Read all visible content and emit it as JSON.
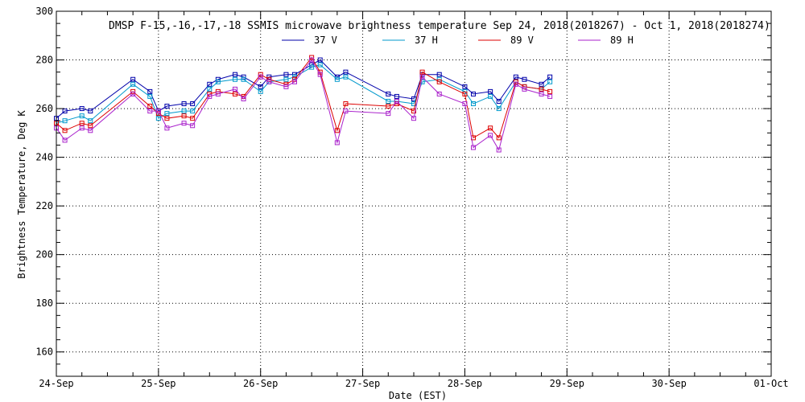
{
  "chart_data": {
    "type": "line",
    "title": "DMSP F-15,-16,-17,-18 SSMIS microwave brightness temperature Sep 24, 2018(2018267) - Oct  1, 2018(2018274)",
    "xlabel": "Date (EST)",
    "ylabel": "Brightness Temperature, Deg K",
    "xlim": [
      "2018-09-24T00:00",
      "2018-10-01T00:00"
    ],
    "ylim": [
      150,
      300
    ],
    "grid": true,
    "legend": "top-center",
    "x_tick_labels": [
      "24-Sep",
      "25-Sep",
      "26-Sep",
      "27-Sep",
      "28-Sep",
      "29-Sep",
      "30-Sep",
      "01-Oct"
    ],
    "y_tick_labels": [
      "160",
      "180",
      "200",
      "220",
      "240",
      "260",
      "280",
      "300"
    ],
    "x": [
      "2018-09-24T00:00",
      "2018-09-24T02:00",
      "2018-09-24T06:00",
      "2018-09-24T08:00",
      "2018-09-24T18:00",
      "2018-09-24T22:00",
      "2018-09-25T00:00",
      "2018-09-25T02:00",
      "2018-09-25T06:00",
      "2018-09-25T08:00",
      "2018-09-25T12:00",
      "2018-09-25T14:00",
      "2018-09-25T18:00",
      "2018-09-25T20:00",
      "2018-09-26T00:00",
      "2018-09-26T02:00",
      "2018-09-26T06:00",
      "2018-09-26T08:00",
      "2018-09-26T12:00",
      "2018-09-26T14:00",
      "2018-09-26T18:00",
      "2018-09-26T20:00",
      "2018-09-27T06:00",
      "2018-09-27T08:00",
      "2018-09-27T12:00",
      "2018-09-27T14:00",
      "2018-09-27T18:00",
      "2018-09-28T00:00",
      "2018-09-28T02:00",
      "2018-09-28T06:00",
      "2018-09-28T08:00",
      "2018-09-28T12:00",
      "2018-09-28T14:00",
      "2018-09-28T18:00",
      "2018-09-28T20:00",
      "2018-09-29T00:00",
      "2018-09-29T02:00",
      "2018-09-29T06:00",
      "2018-09-29T08:00",
      "2018-09-29T12:00",
      "2018-09-29T14:00"
    ],
    "series": [
      {
        "name": "37 V",
        "color": "#0000aa",
        "values": [
          256,
          259,
          260,
          259,
          272,
          267,
          259,
          261,
          262,
          262,
          270,
          272,
          274,
          273,
          269,
          273,
          274,
          274,
          278,
          280,
          273,
          275,
          266,
          265,
          264,
          274,
          274,
          269,
          266,
          267,
          263,
          273,
          272,
          270,
          273,
          null,
          null,
          null,
          null,
          null,
          null
        ]
      },
      {
        "name": "37 H",
        "color": "#0099cc",
        "values": [
          254,
          255,
          257,
          255,
          270,
          265,
          256,
          258,
          259,
          259,
          268,
          271,
          272,
          272,
          267,
          271,
          272,
          273,
          277,
          278,
          272,
          273,
          263,
          263,
          262,
          271,
          272,
          267,
          262,
          265,
          260,
          271,
          269,
          268,
          271,
          null,
          null,
          null,
          null,
          null,
          null
        ]
      },
      {
        "name": "89 V",
        "color": "#dd0000",
        "values": [
          254,
          251,
          254,
          253,
          267,
          261,
          258,
          256,
          257,
          256,
          266,
          267,
          266,
          265,
          274,
          272,
          270,
          272,
          281,
          275,
          251,
          262,
          261,
          262,
          259,
          275,
          271,
          266,
          248,
          252,
          248,
          271,
          269,
          268,
          267,
          null,
          null,
          null,
          null,
          null,
          null
        ]
      },
      {
        "name": "89 H",
        "color": "#aa22cc",
        "values": [
          252,
          247,
          252,
          251,
          266,
          259,
          259,
          252,
          254,
          253,
          265,
          266,
          268,
          264,
          273,
          271,
          269,
          271,
          280,
          274,
          246,
          259,
          258,
          263,
          256,
          273,
          266,
          262,
          244,
          249,
          243,
          270,
          268,
          266,
          265,
          null,
          null,
          null,
          null,
          null,
          null
        ]
      }
    ]
  }
}
